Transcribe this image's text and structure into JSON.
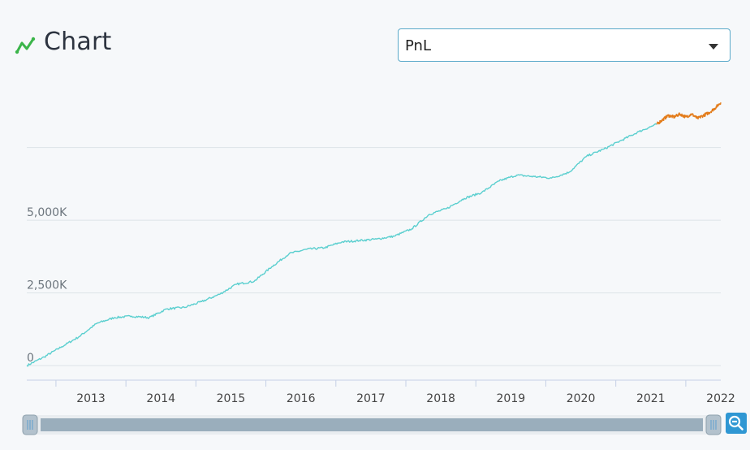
{
  "header": {
    "title": "Chart",
    "icon": "line-chart-icon",
    "icon_color": "#3bb54a"
  },
  "selector": {
    "value": "PnL"
  },
  "zoom": {
    "icon": "zoom-out-icon",
    "color": "#2f97d3"
  },
  "chart_data": {
    "type": "line",
    "title": "",
    "xlabel": "",
    "ylabel": "",
    "x_tick_labels": [
      "2013",
      "2014",
      "2015",
      "2016",
      "2017",
      "2018",
      "2019",
      "2020",
      "2021",
      "2022"
    ],
    "y_ticks": [
      0,
      2500,
      5000,
      7500
    ],
    "y_tick_labels": [
      "0",
      "2,500K",
      "5,000K",
      ""
    ],
    "xlim": [
      "2012-08",
      "2022-07"
    ],
    "ylim": [
      -500,
      9500
    ],
    "grid": true,
    "series": [
      {
        "color": "#5bcfcf",
        "points": [
          [
            "2012-08",
            0
          ],
          [
            "2012-11",
            300
          ],
          [
            "2013-02",
            650
          ],
          [
            "2013-05",
            1000
          ],
          [
            "2013-08",
            1450
          ],
          [
            "2013-11",
            1650
          ],
          [
            "2014-02",
            1700
          ],
          [
            "2014-05",
            1650
          ],
          [
            "2014-08",
            1950
          ],
          [
            "2014-11",
            2000
          ],
          [
            "2015-02",
            2200
          ],
          [
            "2015-05",
            2450
          ],
          [
            "2015-08",
            2800
          ],
          [
            "2015-11",
            2900
          ],
          [
            "2016-02",
            3400
          ],
          [
            "2016-05",
            3850
          ],
          [
            "2016-08",
            4000
          ],
          [
            "2016-11",
            4050
          ],
          [
            "2017-02",
            4250
          ],
          [
            "2017-05",
            4300
          ],
          [
            "2017-08",
            4350
          ],
          [
            "2017-11",
            4450
          ],
          [
            "2018-02",
            4700
          ],
          [
            "2018-05",
            5200
          ],
          [
            "2018-08",
            5400
          ],
          [
            "2018-11",
            5750
          ],
          [
            "2019-02",
            5950
          ],
          [
            "2019-05",
            6350
          ],
          [
            "2019-08",
            6550
          ],
          [
            "2019-11",
            6500
          ],
          [
            "2020-02",
            6450
          ],
          [
            "2020-05",
            6650
          ],
          [
            "2020-08",
            7200
          ],
          [
            "2020-11",
            7450
          ],
          [
            "2021-02",
            7750
          ],
          [
            "2021-05",
            8050
          ],
          [
            "2021-08",
            8300
          ]
        ]
      },
      {
        "color": "#e37c1a",
        "points": [
          [
            "2021-08",
            8300
          ],
          [
            "2021-09",
            8450
          ],
          [
            "2021-10",
            8600
          ],
          [
            "2021-11",
            8550
          ],
          [
            "2021-12",
            8650
          ],
          [
            "2022-01",
            8550
          ],
          [
            "2022-02",
            8650
          ],
          [
            "2022-03",
            8500
          ],
          [
            "2022-04",
            8600
          ],
          [
            "2022-05",
            8700
          ],
          [
            "2022-06",
            8850
          ],
          [
            "2022-07",
            9050
          ]
        ]
      }
    ],
    "navigator": {
      "range": [
        "2012-08",
        "2022-07"
      ],
      "color": "#9aaebc"
    }
  }
}
